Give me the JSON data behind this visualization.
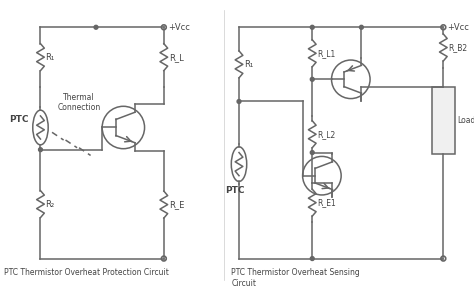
{
  "bg_color": "#ffffff",
  "line_color": "#666666",
  "text_color": "#444444",
  "title1": "PTC Thermistor Overheat Protection Circuit",
  "title2": "PTC Thermistor Overheat Sensing\nCircuit",
  "vcc_label": "+Vcc",
  "fig_width": 4.74,
  "fig_height": 2.96,
  "dpi": 100
}
